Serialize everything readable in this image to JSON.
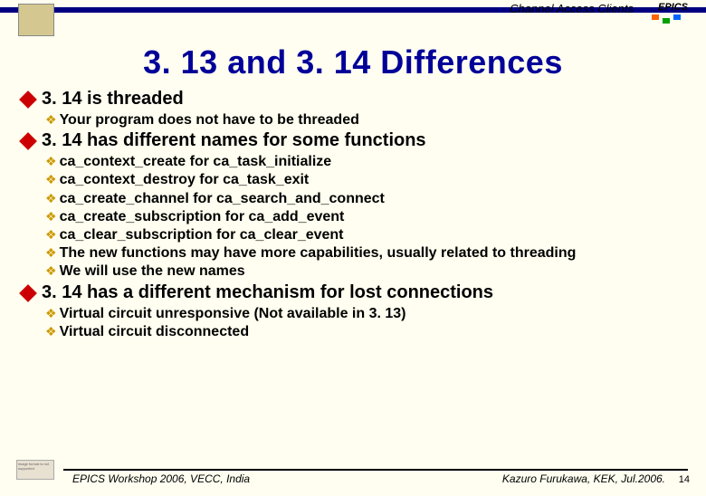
{
  "header": {
    "topic": "Channel Access Clients",
    "brand": "EPICS"
  },
  "title": "3. 13 and 3. 14 Differences",
  "sections": [
    {
      "heading": "3. 14 is threaded",
      "items": [
        "Your program does not have to be threaded"
      ]
    },
    {
      "heading": "3. 14 has different names for some functions",
      "items": [
        "ca_context_create for ca_task_initialize",
        "ca_context_destroy for ca_task_exit",
        "ca_create_channel for ca_search_and_connect",
        "ca_create_subscription for ca_add_event",
        "ca_clear_subscription for ca_clear_event",
        "The new functions may have more capabilities, usually related to threading",
        "We will use the new names"
      ]
    },
    {
      "heading": "3. 14 has a different mechanism for lost connections",
      "items": [
        "Virtual circuit unresponsive (Not available in 3. 13)",
        "Virtual circuit disconnected"
      ]
    }
  ],
  "footer": {
    "left": "EPICS Workshop 2006, VECC, India",
    "right": "Kazuro Furukawa, KEK, Jul.2006.",
    "page": "14",
    "placeholder": "image format is not supported"
  },
  "colors": {
    "background": "#fffef0",
    "title": "#000099",
    "header_line": "#000080",
    "diamond": "#cc0000",
    "spark": "#cc9900",
    "text": "#000000"
  }
}
